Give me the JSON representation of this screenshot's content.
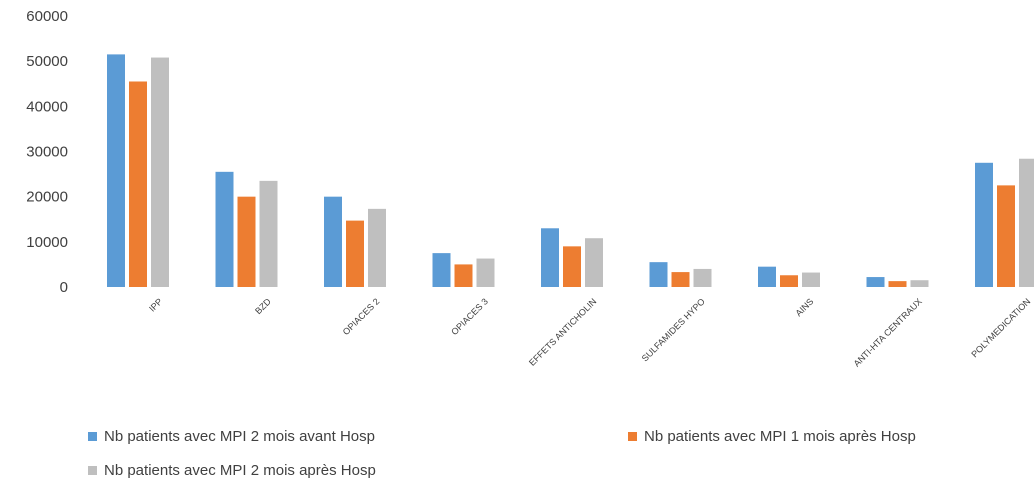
{
  "chart_data": {
    "type": "bar",
    "categories": [
      "IPP",
      "BZD",
      "OPIACES 2",
      "OPIACES 3",
      "EFFETS ANTICHOLIN",
      "SULFAMIDES HYPO",
      "AINS",
      "ANTI-HTA CENTRAUX",
      "POLYMEDICATION"
    ],
    "series": [
      {
        "name": "Nb patients avec MPI 2 mois avant Hosp",
        "color": "#5b9bd5",
        "values": [
          51500,
          25500,
          20000,
          7500,
          13000,
          5500,
          4500,
          2200,
          27500
        ]
      },
      {
        "name": "Nb patients avec MPI 1 mois après Hosp",
        "color": "#ed7d31",
        "values": [
          45500,
          20000,
          14700,
          5000,
          9000,
          3300,
          2600,
          1300,
          22500
        ]
      },
      {
        "name": "Nb patients avec MPI 2 mois après Hosp",
        "color": "#bfbfbf",
        "values": [
          50800,
          23500,
          17300,
          6300,
          10800,
          4000,
          3200,
          1500,
          28400
        ]
      }
    ],
    "yticks": [
      "0",
      "10000",
      "20000",
      "30000",
      "40000",
      "50000",
      "60000"
    ],
    "ylim": [
      0,
      60000
    ],
    "title": "",
    "xlabel": "",
    "ylabel": "",
    "grid": false,
    "legend_position": "bottom"
  }
}
